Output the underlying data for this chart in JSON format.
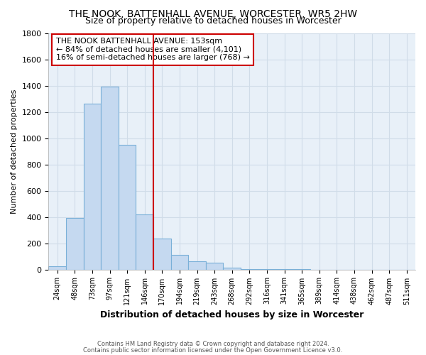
{
  "title": "THE NOOK, BATTENHALL AVENUE, WORCESTER, WR5 2HW",
  "subtitle": "Size of property relative to detached houses in Worcester",
  "xlabel": "Distribution of detached houses by size in Worcester",
  "ylabel": "Number of detached properties",
  "categories": [
    "24sqm",
    "48sqm",
    "73sqm",
    "97sqm",
    "121sqm",
    "146sqm",
    "170sqm",
    "194sqm",
    "219sqm",
    "243sqm",
    "268sqm",
    "292sqm",
    "316sqm",
    "341sqm",
    "365sqm",
    "389sqm",
    "414sqm",
    "438sqm",
    "462sqm",
    "487sqm",
    "511sqm"
  ],
  "values": [
    25,
    390,
    1260,
    1390,
    950,
    420,
    235,
    110,
    65,
    50,
    15,
    5,
    3,
    2,
    1,
    0,
    0,
    0,
    0,
    0,
    0
  ],
  "bar_color": "#c5d9f0",
  "bar_edge_color": "#7ab0d8",
  "vline_x": 5.5,
  "vline_color": "#cc0000",
  "annotation_text": "THE NOOK BATTENHALL AVENUE: 153sqm\n← 84% of detached houses are smaller (4,101)\n16% of semi-detached houses are larger (768) →",
  "annotation_box_color": "#cc0000",
  "ylim": [
    0,
    1800
  ],
  "yticks": [
    0,
    200,
    400,
    600,
    800,
    1000,
    1200,
    1400,
    1600,
    1800
  ],
  "footer_line1": "Contains HM Land Registry data © Crown copyright and database right 2024.",
  "footer_line2": "Contains public sector information licensed under the Open Government Licence v3.0.",
  "bg_color": "#ffffff",
  "grid_color": "#d0dce8",
  "plot_bg_color": "#e8f0f8"
}
